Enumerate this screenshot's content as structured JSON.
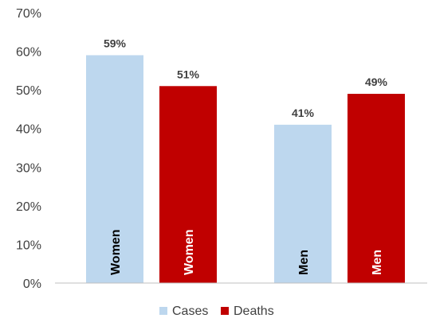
{
  "chart_data": {
    "type": "bar",
    "categories": [
      "Women",
      "Men"
    ],
    "series": [
      {
        "name": "Cases",
        "values": [
          59,
          41
        ],
        "labels": [
          "59%",
          "41%"
        ],
        "bar_text": [
          "Women",
          "Men"
        ],
        "bar_text_color": "#000000"
      },
      {
        "name": "Deaths",
        "values": [
          51,
          49
        ],
        "labels": [
          "51%",
          "49%"
        ],
        "bar_text": [
          "Women",
          "Men"
        ],
        "bar_text_color": "#ffffff"
      }
    ],
    "ylim": [
      0,
      70
    ],
    "yticks": [
      0,
      10,
      20,
      30,
      40,
      50,
      60,
      70
    ],
    "ytick_labels": [
      "0%",
      "10%",
      "20%",
      "30%",
      "40%",
      "50%",
      "60%",
      "70%"
    ],
    "grid": false,
    "legend_position": "bottom",
    "title": "",
    "xlabel": "",
    "ylabel": ""
  },
  "colors": {
    "cases": "#bdd7ee",
    "deaths": "#c00000",
    "axis": "#bfbfbf",
    "text": "#404040"
  }
}
